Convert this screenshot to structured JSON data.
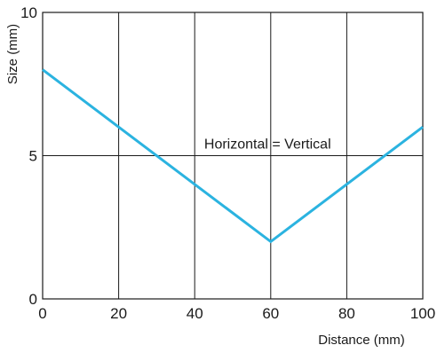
{
  "chart_data": {
    "type": "line",
    "x": [
      0,
      60,
      100
    ],
    "series": [
      {
        "values": [
          8,
          2,
          6
        ],
        "color": "#2bb3e0"
      }
    ],
    "xlabel": "Distance (mm)",
    "ylabel": "Size (mm)",
    "xlim": [
      0,
      100
    ],
    "ylim": [
      0,
      10
    ],
    "xticks": [
      0,
      20,
      40,
      60,
      80,
      100
    ],
    "yticks": [
      0,
      5,
      10
    ],
    "grid": true,
    "annotations": [
      {
        "text": "Horizontal = Vertical",
        "x": 73,
        "y": 5
      }
    ]
  }
}
